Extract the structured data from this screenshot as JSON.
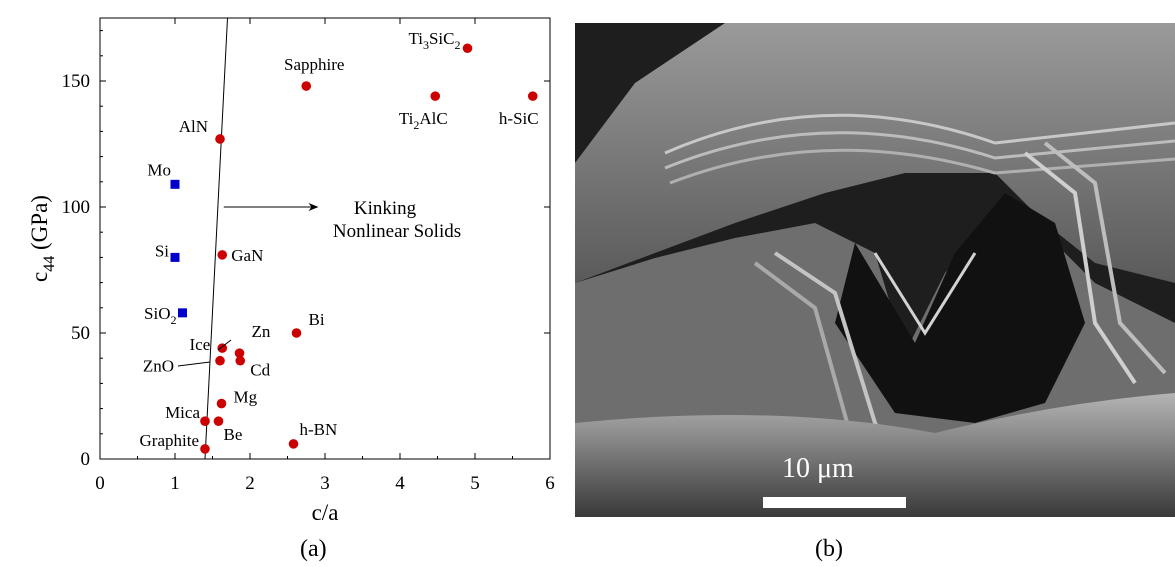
{
  "captions": {
    "a": "(a)",
    "b": "(b)"
  },
  "panel_b": {
    "scale_label": "10 μm"
  },
  "colors": {
    "hexagonal_marker": "#cc0000",
    "cubic_marker": "#0000cc"
  },
  "chart_data": {
    "type": "scatter",
    "xlabel": "c/a",
    "ylabel": "c44 (GPa)",
    "xlim": [
      0,
      6
    ],
    "ylim": [
      0,
      175
    ],
    "xticks": [
      "0",
      "1",
      "2",
      "3",
      "4",
      "5",
      "6"
    ],
    "yticks": [
      "0",
      "50",
      "100",
      "150"
    ],
    "grid": false,
    "points": [
      {
        "x": 4.9,
        "y": 163,
        "label": "Ti3SiC2",
        "group": "red"
      },
      {
        "x": 2.75,
        "y": 148,
        "label": "Sapphire",
        "group": "red"
      },
      {
        "x": 4.47,
        "y": 144,
        "label": "Ti2AlC",
        "group": "red"
      },
      {
        "x": 5.77,
        "y": 144,
        "label": "h-SiC",
        "group": "red"
      },
      {
        "x": 1.6,
        "y": 127,
        "label": "AlN",
        "group": "red"
      },
      {
        "x": 1.63,
        "y": 81,
        "label": "GaN",
        "group": "red"
      },
      {
        "x": 2.62,
        "y": 50,
        "label": "Bi",
        "group": "red"
      },
      {
        "x": 1.63,
        "y": 44,
        "label": "Ice",
        "group": "red"
      },
      {
        "x": 1.86,
        "y": 42,
        "label": "Zn",
        "group": "red"
      },
      {
        "x": 1.6,
        "y": 39,
        "label": "ZnO",
        "group": "red"
      },
      {
        "x": 1.87,
        "y": 39,
        "label": "Cd",
        "group": "red"
      },
      {
        "x": 1.62,
        "y": 22,
        "label": "Mg",
        "group": "red"
      },
      {
        "x": 1.4,
        "y": 15,
        "label": "Mica",
        "group": "red"
      },
      {
        "x": 1.58,
        "y": 15,
        "label": "Be",
        "group": "red"
      },
      {
        "x": 2.58,
        "y": 6,
        "label": "h-BN",
        "group": "red"
      },
      {
        "x": 1.4,
        "y": 4,
        "label": "Graphite",
        "group": "red"
      },
      {
        "x": 1.0,
        "y": 109,
        "label": "Mo",
        "group": "blue"
      },
      {
        "x": 1.0,
        "y": 80,
        "label": "Si",
        "group": "blue"
      },
      {
        "x": 1.1,
        "y": 58,
        "label": "SiO2",
        "group": "blue"
      }
    ],
    "boundary_line": {
      "from": [
        1.4,
        0
      ],
      "to": [
        1.7,
        175
      ]
    },
    "annotation": {
      "text": [
        "Kinking",
        "Nonlinear Solids"
      ],
      "arrow_from_x": 1.65,
      "arrow_to_x": 2.9,
      "y": 100
    }
  }
}
